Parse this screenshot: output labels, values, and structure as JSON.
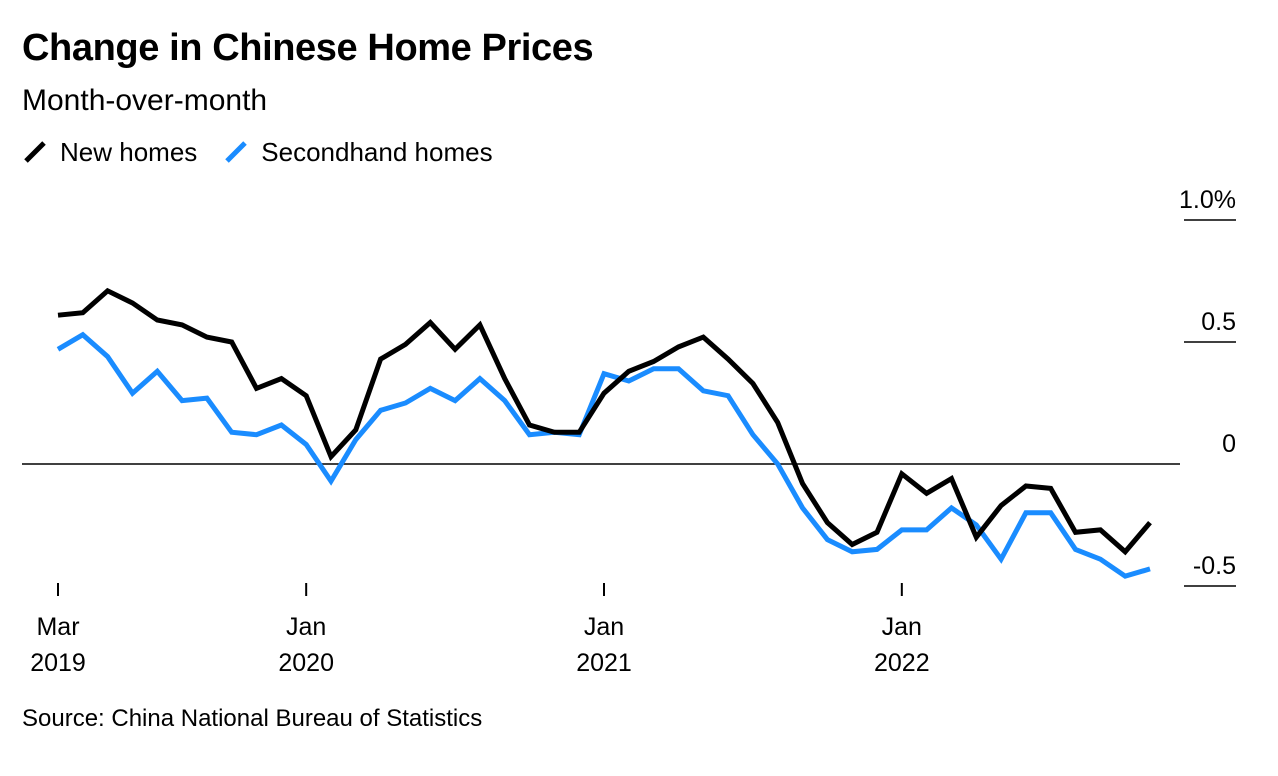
{
  "title": "Change in Chinese Home Prices",
  "subtitle": "Month-over-month",
  "source": "Source: China National Bureau of Statistics",
  "colors": {
    "new_homes": "#000000",
    "secondhand_homes": "#1a8cff",
    "zero_line": "#000000",
    "gridline": "#000000",
    "text": "#000000"
  },
  "chart_data": {
    "type": "line",
    "title": "Change in Chinese Home Prices",
    "subtitle": "Month-over-month",
    "xlabel": "",
    "ylabel": "",
    "ylim": [
      -0.5,
      1.0
    ],
    "y_ticks": [
      {
        "value": 1.0,
        "label": "1.0%"
      },
      {
        "value": 0.5,
        "label": "0.5"
      },
      {
        "value": 0,
        "label": "0"
      },
      {
        "value": -0.5,
        "label": "-0.5"
      }
    ],
    "x_ticks": [
      {
        "index": 0,
        "month": "Mar",
        "year": "2019"
      },
      {
        "index": 10,
        "month": "Jan",
        "year": "2020"
      },
      {
        "index": 22,
        "month": "Jan",
        "year": "2021"
      },
      {
        "index": 34,
        "month": "Jan",
        "year": "2022"
      }
    ],
    "x": [
      "2019-03",
      "2019-04",
      "2019-05",
      "2019-06",
      "2019-07",
      "2019-08",
      "2019-09",
      "2019-10",
      "2019-11",
      "2019-12",
      "2020-01",
      "2020-02",
      "2020-03",
      "2020-04",
      "2020-05",
      "2020-06",
      "2020-07",
      "2020-08",
      "2020-09",
      "2020-10",
      "2020-11",
      "2020-12",
      "2021-01",
      "2021-02",
      "2021-03",
      "2021-04",
      "2021-05",
      "2021-06",
      "2021-07",
      "2021-08",
      "2021-09",
      "2021-10",
      "2021-11",
      "2021-12",
      "2022-01",
      "2022-02",
      "2022-03",
      "2022-04",
      "2022-05",
      "2022-06",
      "2022-07",
      "2022-08",
      "2022-09",
      "2022-10",
      "2022-11"
    ],
    "legend_position": "top-left",
    "series": [
      {
        "name": "New homes",
        "color": "#000000",
        "values": [
          0.61,
          0.62,
          0.71,
          0.66,
          0.59,
          0.57,
          0.52,
          0.5,
          0.31,
          0.35,
          0.28,
          0.03,
          0.14,
          0.43,
          0.49,
          0.58,
          0.47,
          0.57,
          0.35,
          0.16,
          0.13,
          0.13,
          0.29,
          0.38,
          0.42,
          0.48,
          0.52,
          0.43,
          0.33,
          0.17,
          -0.08,
          -0.24,
          -0.33,
          -0.28,
          -0.04,
          -0.12,
          -0.06,
          -0.3,
          -0.17,
          -0.09,
          -0.1,
          -0.28,
          -0.27,
          -0.36,
          -0.24
        ]
      },
      {
        "name": "Secondhand homes",
        "color": "#1a8cff",
        "values": [
          0.47,
          0.53,
          0.44,
          0.29,
          0.38,
          0.26,
          0.27,
          0.13,
          0.12,
          0.16,
          0.08,
          -0.07,
          0.1,
          0.22,
          0.25,
          0.31,
          0.26,
          0.35,
          0.26,
          0.12,
          0.13,
          0.12,
          0.37,
          0.34,
          0.39,
          0.39,
          0.3,
          0.28,
          0.12,
          0.0,
          -0.18,
          -0.31,
          -0.36,
          -0.35,
          -0.27,
          -0.27,
          -0.18,
          -0.25,
          -0.39,
          -0.2,
          -0.2,
          -0.35,
          -0.39,
          -0.46,
          -0.43
        ]
      }
    ]
  }
}
